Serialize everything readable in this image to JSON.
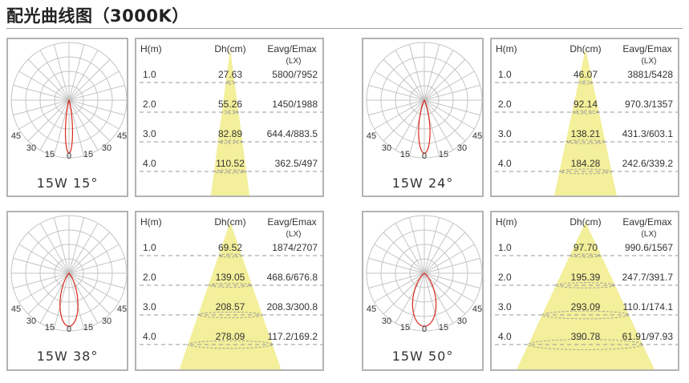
{
  "title": "配光曲线图（3000K）",
  "columns": {
    "h": "H(m)",
    "dh": "Dh(cm)",
    "e": "Eavg/Emax",
    "unit": "(LX)"
  },
  "polar_ticks": {
    "a45": "45",
    "a30": "30",
    "a15": "15",
    "a0": "0"
  },
  "colors": {
    "curve": "#d9271c",
    "beam": "#f3ef9a",
    "grid": "#c4c4c4"
  },
  "panels": [
    {
      "label": "15W 15°",
      "beam_deg": 15,
      "rows": [
        {
          "h": "1.0",
          "dh": "27.63",
          "e": "5800/7952"
        },
        {
          "h": "2.0",
          "dh": "55.26",
          "e": "1450/1988"
        },
        {
          "h": "3.0",
          "dh": "82.89",
          "e": "644.4/883.5"
        },
        {
          "h": "4.0",
          "dh": "110.52",
          "e": "362.5/497"
        }
      ]
    },
    {
      "label": "15W 24°",
      "beam_deg": 24,
      "rows": [
        {
          "h": "1.0",
          "dh": "46.07",
          "e": "3881/5428"
        },
        {
          "h": "2.0",
          "dh": "92.14",
          "e": "970.3/1357"
        },
        {
          "h": "3.0",
          "dh": "138.21",
          "e": "431.3/603.1"
        },
        {
          "h": "4.0",
          "dh": "184.28",
          "e": "242.6/339.2"
        }
      ]
    },
    {
      "label": "15W 38°",
      "beam_deg": 38,
      "rows": [
        {
          "h": "1.0",
          "dh": "69.52",
          "e": "1874/2707"
        },
        {
          "h": "2.0",
          "dh": "139.05",
          "e": "468.6/676.8"
        },
        {
          "h": "3.0",
          "dh": "208.57",
          "e": "208.3/300.8"
        },
        {
          "h": "4.0",
          "dh": "278.09",
          "e": "117.2/169.2"
        }
      ]
    },
    {
      "label": "15W 50°",
      "beam_deg": 50,
      "rows": [
        {
          "h": "1.0",
          "dh": "97.70",
          "e": "990.6/1567"
        },
        {
          "h": "2.0",
          "dh": "195.39",
          "e": "247.7/391.7"
        },
        {
          "h": "3.0",
          "dh": "293.09",
          "e": "110.1/174.1"
        },
        {
          "h": "4.0",
          "dh": "390.78",
          "e": "61.91/97.93"
        }
      ]
    }
  ]
}
